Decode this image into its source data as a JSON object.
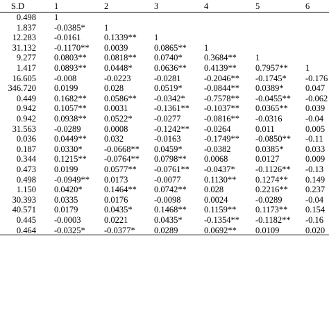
{
  "table": {
    "headers": [
      "S.D",
      "1",
      "2",
      "3",
      "4",
      "5",
      "6"
    ],
    "rows": [
      {
        "sd": "0.498",
        "cells": [
          "1",
          "",
          "",
          "",
          "",
          ""
        ]
      },
      {
        "sd": "1.837",
        "cells": [
          "-0.0385*",
          "1",
          "",
          "",
          "",
          ""
        ]
      },
      {
        "sd": "12.283",
        "cells": [
          "-0.0161",
          "0.1339**",
          "1",
          "",
          "",
          ""
        ]
      },
      {
        "sd": "31.132",
        "cells": [
          "-0.1170**",
          "0.0039",
          "0.0865**",
          "1",
          "",
          ""
        ]
      },
      {
        "sd": "9.277",
        "cells": [
          "0.0803**",
          "0.0818**",
          "0.0740*",
          "0.3684**",
          "1",
          ""
        ]
      },
      {
        "sd": "1.417",
        "cells": [
          "0.0893**",
          "0.0448*",
          "0.0636**",
          "0.4139**",
          "0.7957**",
          "1"
        ]
      },
      {
        "sd": "16.605",
        "cells": [
          "-0.008",
          "-0.0223",
          "-0.0281",
          "-0.2046**",
          "-0.1745*",
          "-0.176"
        ]
      },
      {
        "sd": "346.720",
        "cells": [
          "0.0199",
          "0.028",
          "0.0519*",
          "-0.0844**",
          "0.0389*",
          "0.047"
        ]
      },
      {
        "sd": "0.449",
        "cells": [
          "0.1682**",
          "0.0586**",
          "-0.0342*",
          "-0.7578**",
          "-0.0455**",
          "-0.062"
        ]
      },
      {
        "sd": "0.942",
        "cells": [
          "0.1057**",
          "0.0031",
          "-0.1361**",
          "-0.1037**",
          "0.0365**",
          "0.039"
        ]
      },
      {
        "sd": "0.942",
        "cells": [
          "0.0938**",
          "0.0522*",
          "-0.0277",
          "-0.0816**",
          "-0.0316",
          "-0.04"
        ]
      },
      {
        "sd": "31.563",
        "cells": [
          "-0.0289",
          "0.0008",
          "-0.1242**",
          "-0.0264",
          "0.011",
          "0.005"
        ]
      },
      {
        "sd": "0.036",
        "cells": [
          "0.0449**",
          "0.032",
          "-0.0163",
          "-0.1749**",
          "-0.0850**",
          "-0.11"
        ]
      },
      {
        "sd": "0.187",
        "cells": [
          "0.0330*",
          "-0.0668**",
          "0.0459*",
          "-0.0382",
          "0.0385*",
          "0.033"
        ]
      },
      {
        "sd": "0.344",
        "cells": [
          "0.1215**",
          "-0.0764**",
          "0.0798**",
          "0.0068",
          "0.0127",
          "0.009"
        ]
      },
      {
        "sd": "0.473",
        "cells": [
          "0.0199",
          "0.0577**",
          "-0.0761**",
          "-0.0437*",
          "-0.1126**",
          "-0.13"
        ]
      },
      {
        "sd": "0.498",
        "cells": [
          "-0.0949**",
          "0.0173",
          "-0.0077",
          "0.1130**",
          "0.1274**",
          "0.149"
        ]
      },
      {
        "sd": "1.150",
        "cells": [
          "0.0420*",
          "0.1464**",
          "0.0742**",
          "0.028",
          "0.2216**",
          "0.237"
        ]
      },
      {
        "sd": "30.393",
        "cells": [
          "0.0335",
          "0.0176",
          "-0.0098",
          "0.0024",
          "-0.0289",
          "-0.04"
        ]
      },
      {
        "sd": "40.571",
        "cells": [
          "0.0179",
          "0.0435*",
          "0.1468**",
          "0.1159**",
          "0.1173**",
          "0.154"
        ]
      },
      {
        "sd": "0.445",
        "cells": [
          "-0.0003",
          "0.0221",
          "0.0435*",
          "-0.1354**",
          "-0.1182**",
          "-0.16"
        ]
      },
      {
        "sd": "0.464",
        "cells": [
          "-0.0325*",
          "-0.0377*",
          "0.0289",
          "0.0692**",
          "0.0109",
          "0.020"
        ]
      }
    ]
  }
}
